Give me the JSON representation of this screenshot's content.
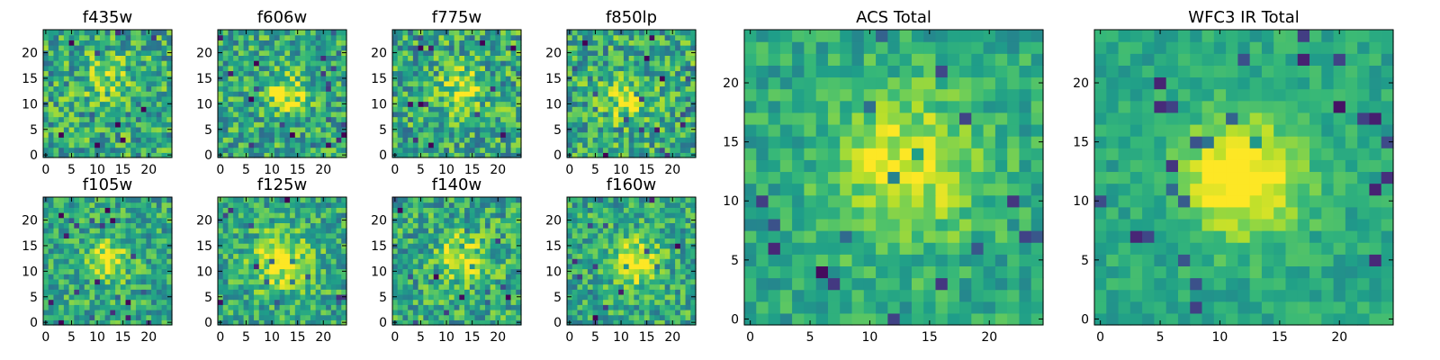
{
  "chart_data": [
    {
      "type": "heatmap",
      "title": "f435w",
      "x_ticks": [
        0,
        5,
        10,
        15,
        20
      ],
      "y_ticks": [
        0,
        5,
        10,
        15,
        20
      ],
      "xlim": [
        0,
        24
      ],
      "ylim": [
        0,
        24
      ],
      "colormap": "viridis",
      "grid": false,
      "seed": 11,
      "source_center": [
        12,
        15
      ],
      "source_amplitude": 0.2,
      "source_sigma": 3.5,
      "noise": 0.55
    },
    {
      "type": "heatmap",
      "title": "f606w",
      "x_ticks": [
        0,
        5,
        10,
        15,
        20
      ],
      "y_ticks": [
        0,
        5,
        10,
        15,
        20
      ],
      "xlim": [
        0,
        24
      ],
      "ylim": [
        0,
        24
      ],
      "colormap": "viridis",
      "grid": false,
      "seed": 22,
      "source_center": [
        13,
        12
      ],
      "source_amplitude": 0.4,
      "source_sigma": 2.5,
      "noise": 0.5
    },
    {
      "type": "heatmap",
      "title": "f775w",
      "x_ticks": [
        0,
        5,
        10,
        15,
        20
      ],
      "y_ticks": [
        0,
        5,
        10,
        15,
        20
      ],
      "xlim": [
        0,
        24
      ],
      "ylim": [
        0,
        24
      ],
      "colormap": "viridis",
      "grid": false,
      "seed": 33,
      "source_center": [
        13,
        13
      ],
      "source_amplitude": 0.3,
      "source_sigma": 3.0,
      "noise": 0.55
    },
    {
      "type": "heatmap",
      "title": "f850lp",
      "x_ticks": [
        0,
        5,
        10,
        15,
        20
      ],
      "y_ticks": [
        0,
        5,
        10,
        15,
        20
      ],
      "xlim": [
        0,
        24
      ],
      "ylim": [
        0,
        24
      ],
      "colormap": "viridis",
      "grid": false,
      "seed": 44,
      "source_center": [
        11,
        11
      ],
      "source_amplitude": 0.3,
      "source_sigma": 3.0,
      "noise": 0.55
    },
    {
      "type": "heatmap",
      "title": "f105w",
      "x_ticks": [
        0,
        5,
        10,
        15,
        20
      ],
      "y_ticks": [
        0,
        5,
        10,
        15,
        20
      ],
      "xlim": [
        0,
        24
      ],
      "ylim": [
        0,
        24
      ],
      "colormap": "viridis",
      "grid": false,
      "seed": 55,
      "source_center": [
        12,
        12
      ],
      "source_amplitude": 0.35,
      "source_sigma": 3.0,
      "noise": 0.45
    },
    {
      "type": "heatmap",
      "title": "f125w",
      "x_ticks": [
        0,
        5,
        10,
        15,
        20
      ],
      "y_ticks": [
        0,
        5,
        10,
        15,
        20
      ],
      "xlim": [
        0,
        24
      ],
      "ylim": [
        0,
        24
      ],
      "colormap": "viridis",
      "grid": false,
      "seed": 66,
      "source_center": [
        12,
        12
      ],
      "source_amplitude": 0.35,
      "source_sigma": 4.0,
      "noise": 0.45
    },
    {
      "type": "heatmap",
      "title": "f140w",
      "x_ticks": [
        0,
        5,
        10,
        15,
        20
      ],
      "y_ticks": [
        0,
        5,
        10,
        15,
        20
      ],
      "xlim": [
        0,
        24
      ],
      "ylim": [
        0,
        24
      ],
      "colormap": "viridis",
      "grid": false,
      "seed": 77,
      "source_center": [
        13,
        13
      ],
      "source_amplitude": 0.3,
      "source_sigma": 3.5,
      "noise": 0.5
    },
    {
      "type": "heatmap",
      "title": "f160w",
      "x_ticks": [
        0,
        5,
        10,
        15,
        20
      ],
      "y_ticks": [
        0,
        5,
        10,
        15,
        20
      ],
      "xlim": [
        0,
        24
      ],
      "ylim": [
        0,
        24
      ],
      "colormap": "viridis",
      "grid": false,
      "seed": 88,
      "source_center": [
        13,
        12
      ],
      "source_amplitude": 0.45,
      "source_sigma": 3.0,
      "noise": 0.45
    },
    {
      "type": "heatmap",
      "title": "ACS Total",
      "x_ticks": [
        0,
        5,
        10,
        15,
        20
      ],
      "y_ticks": [
        0,
        5,
        10,
        15,
        20
      ],
      "xlim": [
        0,
        24
      ],
      "ylim": [
        0,
        24
      ],
      "colormap": "viridis",
      "grid": false,
      "seed": 99,
      "source_center": [
        13,
        13
      ],
      "source_amplitude": 0.35,
      "source_sigma": 4.5,
      "noise": 0.3
    },
    {
      "type": "heatmap",
      "title": "WFC3 IR Total",
      "x_ticks": [
        0,
        5,
        10,
        15,
        20
      ],
      "y_ticks": [
        0,
        5,
        10,
        15,
        20
      ],
      "xlim": [
        0,
        24
      ],
      "ylim": [
        0,
        24
      ],
      "colormap": "viridis",
      "grid": false,
      "seed": 123,
      "source_center": [
        12,
        12
      ],
      "source_amplitude": 0.5,
      "source_sigma": 3.5,
      "noise": 0.22
    }
  ]
}
